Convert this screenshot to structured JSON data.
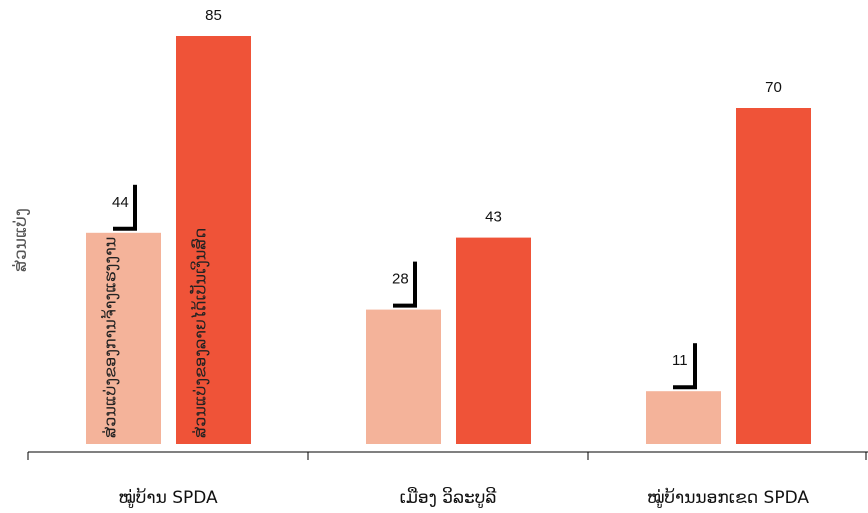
{
  "chart_data": {
    "type": "bar",
    "ylabel": "ສ່ວນແບ່ງ",
    "categories": [
      "ໝູ່ບ້ານ SPDA",
      "ເມືອງ ວິລະບູລີ",
      "ໝູ່ບ້ານນອກເຂດ SPDA"
    ],
    "series": [
      {
        "name": "ສ່ວນແບ່ງຂອງການຈ້າງແຮງງານ",
        "values": [
          44,
          28,
          11
        ],
        "color": "#f4b39a"
      },
      {
        "name": "ສ່ວນແບ່ງຂອງລາຍໄດ້ເປັນເງິນສົດ",
        "values": [
          85,
          43,
          70
        ],
        "color": "#ef5338"
      }
    ],
    "ylim": [
      0,
      85
    ],
    "grid": false,
    "legend": "labels inside first group bars",
    "error_bar_color": "#000000"
  }
}
